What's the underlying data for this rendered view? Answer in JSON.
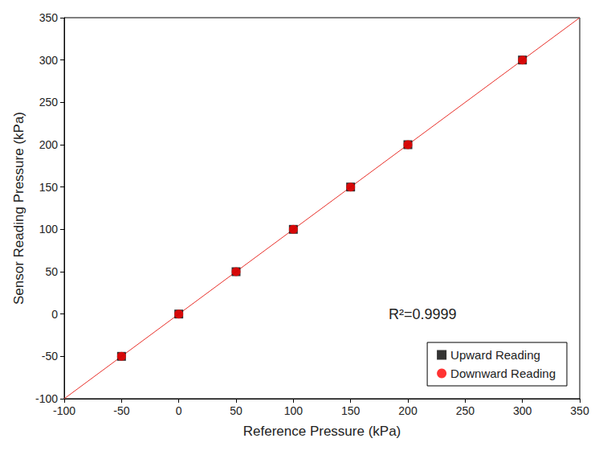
{
  "chart_data": {
    "type": "scatter",
    "x_label": "Reference Pressure (kPa)",
    "y_label": "Sensor Reading Pressure (kPa)",
    "annotations": [
      "R²=0.9999"
    ],
    "series": [
      {
        "name": "Upward Reading",
        "color": "#000000",
        "marker": "square",
        "x": [
          -50,
          0,
          50,
          100,
          150,
          200,
          300
        ],
        "values": [
          -50,
          0,
          50,
          100,
          150,
          200,
          300
        ]
      },
      {
        "name": "Downward Reading",
        "color": "#ff0000",
        "marker": "circle",
        "x": [
          -50,
          0,
          50,
          100,
          150,
          200,
          300
        ],
        "values": [
          -50,
          0,
          50,
          100,
          150,
          200,
          300
        ]
      }
    ],
    "fit_line": {
      "x": [
        -100,
        350
      ],
      "values": [
        -100,
        350
      ],
      "color": "#e8302a",
      "line_style": "solid"
    },
    "xlim": [
      -100,
      350
    ],
    "xticks": [
      -100,
      -50,
      0,
      50,
      100,
      150,
      200,
      250,
      300,
      350
    ],
    "ylim": [
      -100,
      350
    ],
    "yticks": [
      -100,
      -50,
      0,
      50,
      100,
      150,
      200,
      250,
      300,
      350
    ],
    "grid": false,
    "legend": "lower right"
  }
}
